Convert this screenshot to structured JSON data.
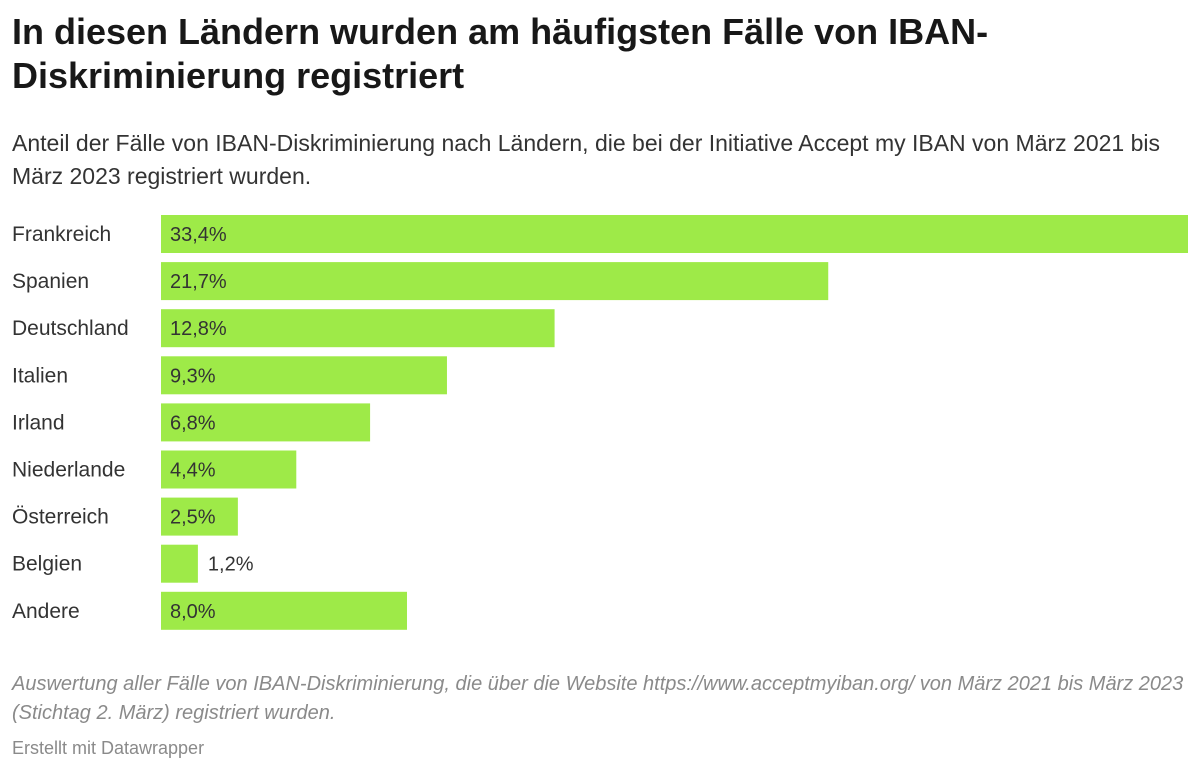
{
  "header": {
    "title": "In diesen Ländern wurden am häufigsten Fälle von IBAN-Diskriminierung registriert",
    "subtitle": "Anteil der Fälle von IBAN-Diskriminierung nach Ländern, die bei der Initiative Accept my IBAN von März 2021 bis März 2023 registriert wurden."
  },
  "chart_data": {
    "type": "bar",
    "orientation": "horizontal",
    "categories": [
      "Frankreich",
      "Spanien",
      "Deutschland",
      "Italien",
      "Irland",
      "Niederlande",
      "Österreich",
      "Belgien",
      "Andere"
    ],
    "values": [
      33.4,
      21.7,
      12.8,
      9.3,
      6.8,
      4.4,
      2.5,
      1.2,
      8.0
    ],
    "value_labels": [
      "33,4%",
      "21,7%",
      "12,8%",
      "9,3%",
      "6,8%",
      "4,4%",
      "2,5%",
      "1,2%",
      "8,0%"
    ],
    "unit": "%",
    "xlim": [
      0,
      33.4
    ],
    "bar_color": "#9eea48",
    "grid": false,
    "legend": "none"
  },
  "footer": {
    "notes": "Auswertung aller Fälle von IBAN-Diskriminierung, die über die Website https://www.acceptmyiban.org/ von März 2021 bis März 2023 (Stichtag 2. März) registriert wurden.",
    "credit": "Erstellt mit Datawrapper"
  }
}
